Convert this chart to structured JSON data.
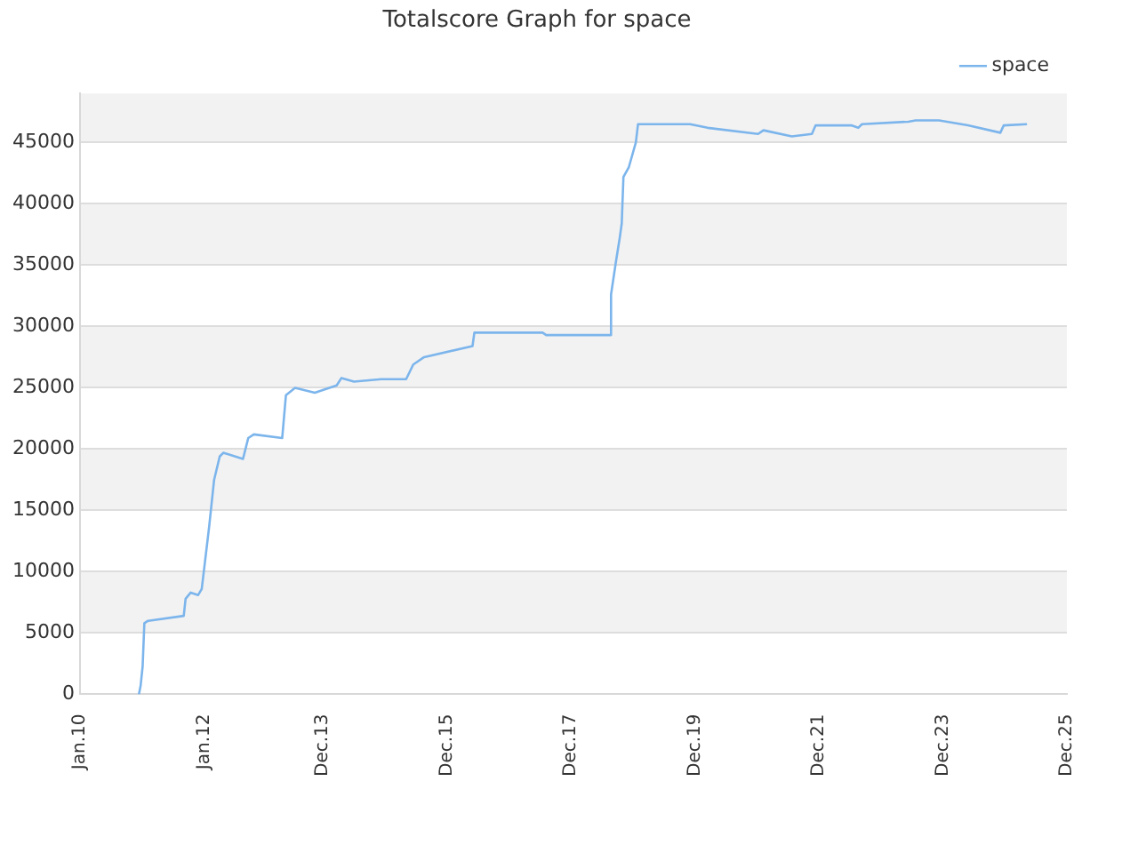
{
  "chart_data": {
    "type": "line",
    "title": "Totalscore Graph for space",
    "x": [
      "2010-12-14",
      "2010-12-24",
      "2011-01-05",
      "2011-01-15",
      "2011-02-06",
      "2011-09-04",
      "2011-09-15",
      "2011-10-15",
      "2011-11-28",
      "2011-12-19",
      "2012-02-01",
      "2012-03-01",
      "2012-04-03",
      "2012-04-24",
      "2012-08-18",
      "2012-09-18",
      "2012-10-21",
      "2013-04-06",
      "2013-04-28",
      "2013-06-21",
      "2013-10-15",
      "2014-02-21",
      "2014-03-21",
      "2014-06-03",
      "2014-11-10",
      "2015-04-06",
      "2015-05-18",
      "2015-07-21",
      "2016-05-01",
      "2016-05-12",
      "2017-06-18",
      "2017-07-09",
      "2018-07-24",
      "2018-07-26",
      "2018-08-24",
      "2018-09-15",
      "2018-09-27",
      "2018-10-07",
      "2018-11-08",
      "2018-12-19",
      "2019-01-01",
      "2019-11-03",
      "2020-02-15",
      "2020-12-08",
      "2021-01-09",
      "2021-06-25",
      "2021-10-21",
      "2021-11-12",
      "2022-06-10",
      "2022-07-21",
      "2022-08-12",
      "2023-05-12",
      "2023-06-24",
      "2023-11-09",
      "2024-04-27",
      "2024-11-04",
      "2024-11-24",
      "2025-04-10"
    ],
    "series": [
      {
        "name": "space",
        "color": "#7cb5ec",
        "values": [
          0,
          700,
          2300,
          5800,
          6000,
          6400,
          7800,
          8300,
          8100,
          8600,
          13700,
          17500,
          19400,
          19700,
          19200,
          20900,
          21200,
          20900,
          24400,
          25000,
          24600,
          25200,
          25800,
          25500,
          25700,
          25700,
          26900,
          27500,
          28400,
          29500,
          29500,
          29300,
          29300,
          32600,
          35300,
          37200,
          38400,
          42200,
          43000,
          45000,
          46500,
          46500,
          46200,
          45700,
          46000,
          45500,
          45700,
          46400,
          46400,
          46200,
          46500,
          46700,
          46800,
          46800,
          46400,
          45800,
          46400,
          46500
        ]
      }
    ],
    "xlim": [
      "2010-01-01",
      "2025-12-01"
    ],
    "xticks": [
      {
        "value": "2010-01-01",
        "label": "Jan.10"
      },
      {
        "value": "2012-01-01",
        "label": "Jan.12"
      },
      {
        "value": "2013-12-01",
        "label": "Dec.13"
      },
      {
        "value": "2015-12-01",
        "label": "Dec.15"
      },
      {
        "value": "2017-12-01",
        "label": "Dec.17"
      },
      {
        "value": "2019-12-01",
        "label": "Dec.19"
      },
      {
        "value": "2021-12-01",
        "label": "Dec.21"
      },
      {
        "value": "2023-12-01",
        "label": "Dec.23"
      },
      {
        "value": "2025-12-01",
        "label": "Dec.25"
      }
    ],
    "ylim": [
      0,
      49000
    ],
    "yticks": [
      0,
      5000,
      10000,
      15000,
      20000,
      25000,
      30000,
      35000,
      40000,
      45000
    ],
    "grid": "y",
    "legend": "top right",
    "marker": "none",
    "line_style": "solid"
  }
}
